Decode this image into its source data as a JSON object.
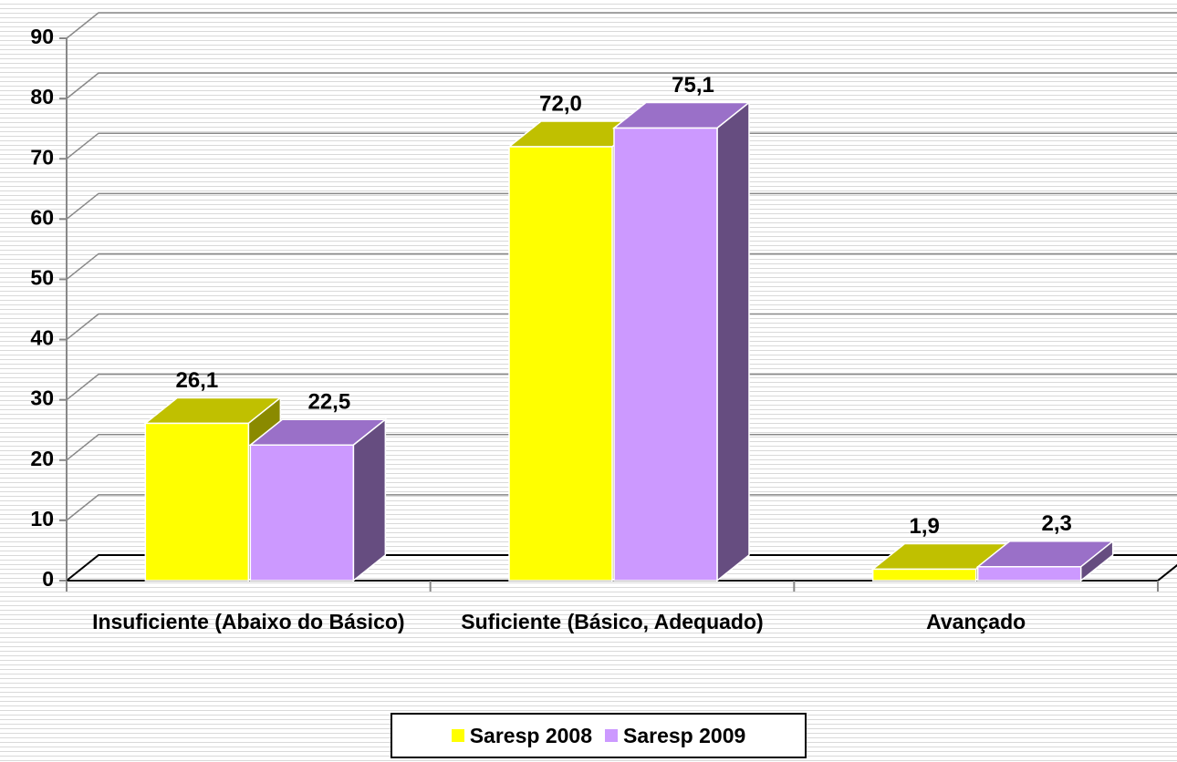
{
  "chart_data": {
    "type": "bar3d",
    "categories": [
      "Insuficiente (Abaixo do Básico)",
      "Suficiente (Básico, Adequado)",
      "Avançado"
    ],
    "series": [
      {
        "name": "Saresp 2008",
        "color": "#ffff00",
        "values": [
          26.1,
          72.0,
          1.9
        ],
        "value_labels": [
          "26,1",
          "72,0",
          "1,9"
        ]
      },
      {
        "name": "Saresp 2009",
        "color": "#cc99ff",
        "values": [
          22.5,
          75.1,
          2.3
        ],
        "value_labels": [
          "22,5",
          "75,1",
          "2,3"
        ]
      }
    ],
    "ylim": [
      0,
      90
    ],
    "yticks": [
      0,
      10,
      20,
      30,
      40,
      50,
      60,
      70,
      80,
      90
    ],
    "grid": true,
    "legend": "bottom"
  }
}
